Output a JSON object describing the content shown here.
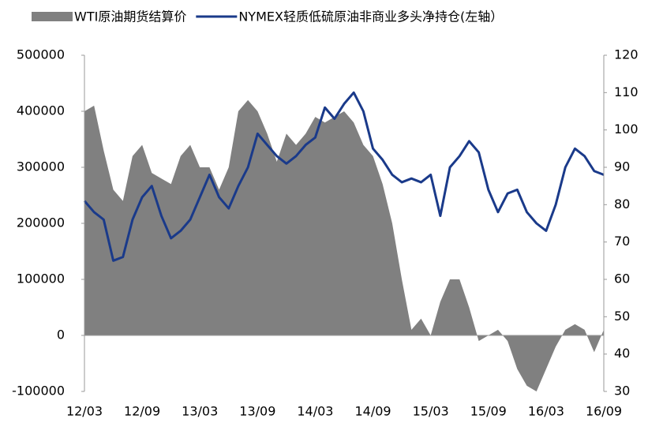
{
  "chart_data": {
    "type": "combo",
    "categories": [
      "12/03",
      null,
      null,
      null,
      null,
      null,
      "12/09",
      null,
      null,
      null,
      null,
      null,
      "13/03",
      null,
      null,
      null,
      null,
      null,
      "13/09",
      null,
      null,
      null,
      null,
      null,
      "14/03",
      null,
      null,
      null,
      null,
      null,
      "14/09",
      null,
      null,
      null,
      null,
      null,
      "15/03",
      null,
      null,
      null,
      null,
      null,
      "15/09",
      null,
      null,
      null,
      null,
      null,
      "16/03",
      null,
      null,
      null,
      null,
      null,
      "16/09"
    ],
    "series": [
      {
        "name": "WTI原油期货结算价",
        "type": "area",
        "color": "#808080",
        "values": [
          400000,
          410000,
          330000,
          260000,
          240000,
          320000,
          340000,
          290000,
          280000,
          270000,
          320000,
          340000,
          300000,
          300000,
          260000,
          300000,
          400000,
          420000,
          400000,
          360000,
          310000,
          360000,
          340000,
          360000,
          390000,
          380000,
          390000,
          400000,
          380000,
          340000,
          320000,
          270000,
          200000,
          100000,
          10000,
          30000,
          0,
          60000,
          100000,
          100000,
          50000,
          -10000,
          0,
          10000,
          -10000,
          -60000,
          -90000,
          -100000,
          -60000,
          -20000,
          10000,
          20000,
          10000,
          -30000,
          10000
        ]
      },
      {
        "name": "NYMEX轻质低硫原油非商业多头净持仓(左轴）",
        "type": "line",
        "axis": "y2",
        "color": "#1a3a8a",
        "values": [
          81,
          78,
          76,
          65,
          66,
          76,
          82,
          85,
          77,
          71,
          73,
          76,
          82,
          88,
          82,
          79,
          85,
          90,
          99,
          96,
          93,
          91,
          93,
          96,
          98,
          106,
          103,
          107,
          110,
          105,
          95,
          92,
          88,
          86,
          87,
          86,
          88,
          77,
          90,
          93,
          97,
          94,
          84,
          78,
          83,
          84,
          78,
          75,
          73,
          80,
          90,
          95,
          93,
          89,
          88
        ]
      }
    ],
    "ylim": [
      -100000,
      500000
    ],
    "yticks": [
      -100000,
      0,
      100000,
      200000,
      300000,
      400000,
      500000
    ],
    "y2lim": [
      30,
      120
    ],
    "y2ticks": [
      30,
      40,
      50,
      60,
      70,
      80,
      90,
      100,
      110,
      120
    ],
    "grid": false
  }
}
